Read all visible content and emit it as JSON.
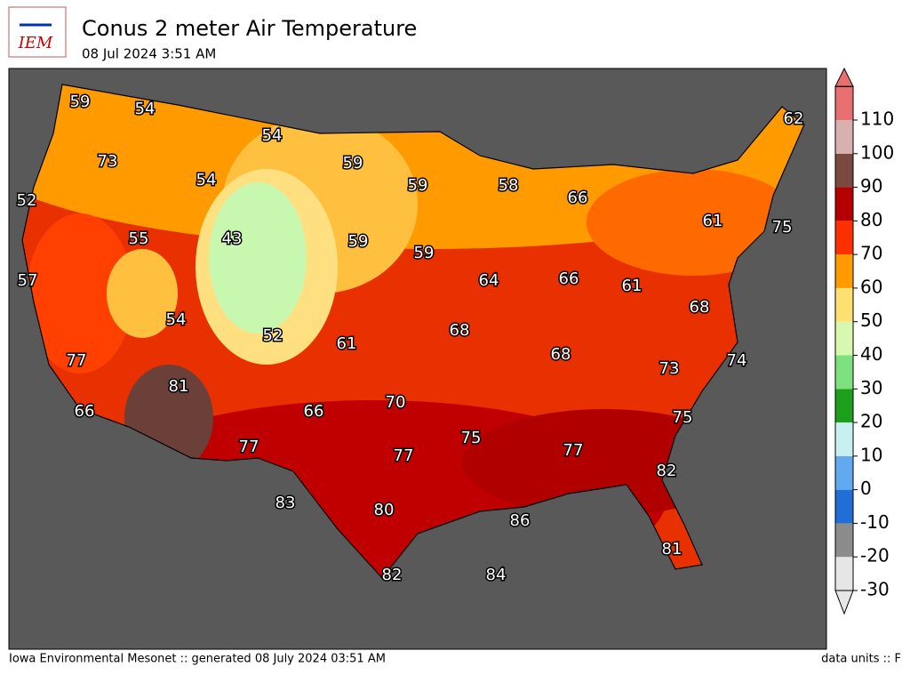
{
  "header": {
    "logo": "IEM",
    "title": "Conus 2 meter Air Temperature",
    "subtitle": "08 Jul 2024 3:51 AM"
  },
  "map_labels": [
    "59",
    "54",
    "54",
    "73",
    "59",
    "54",
    "59",
    "58",
    "66",
    "62",
    "52",
    "61",
    "75",
    "43",
    "55",
    "59",
    "59",
    "57",
    "64",
    "66",
    "61",
    "68",
    "54",
    "52",
    "61",
    "68",
    "68",
    "73",
    "74",
    "77",
    "81",
    "70",
    "66",
    "66",
    "75",
    "75",
    "77",
    "77",
    "77",
    "82",
    "83",
    "80",
    "86",
    "81",
    "82",
    "84"
  ],
  "colorbar": {
    "ticks": [
      -30,
      -20,
      -10,
      0,
      10,
      20,
      30,
      40,
      50,
      60,
      70,
      80,
      90,
      100,
      110
    ],
    "colors": [
      "#e6e6e6",
      "#8c8c8c",
      "#1f6fd6",
      "#62aaf0",
      "#c8f0f0",
      "#1ca01c",
      "#7ee07e",
      "#d8f8b0",
      "#ffe070",
      "#ff9a00",
      "#ff3000",
      "#b40000",
      "#7a4a40",
      "#d8b0b0",
      "#e87070"
    ]
  },
  "footer": {
    "left": "Iowa Environmental Mesonet :: generated 08 July 2024 03:51 AM",
    "right": "data units :: F"
  }
}
